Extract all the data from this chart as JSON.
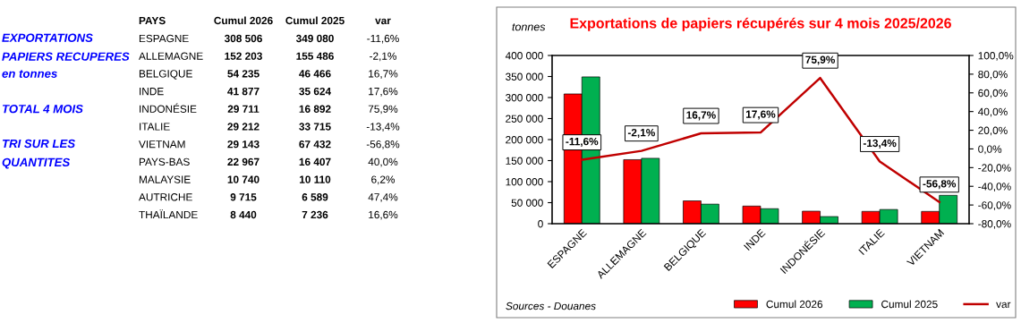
{
  "chart_data": [
    {
      "type": "other",
      "ylabel": "PAYS",
      "annotations": [
        "EXPORTATIONS\nPAPIERS RECUPERES",
        "en tonnes",
        "TOTAL 4 MOIS",
        "TRI SUR LES\nQUANTITES"
      ],
      "categories": [
        "ESPAGNE",
        "ALLEMAGNE",
        "BELGIQUE",
        "INDE",
        "INDONÉSIE",
        "ITALIE",
        "VIETNAM",
        "PAYS-BAS",
        "MALAYSIE",
        "AUTRICHE",
        "THAÏLANDE"
      ],
      "series": [
        {
          "name": "Cumul 2026",
          "color": "#000000",
          "values": [
            308506,
            152203,
            54235,
            41877,
            29711,
            29212,
            29143,
            22967,
            10740,
            9715,
            8440
          ],
          "value_labels": [
            "308 506",
            "152 203",
            "54 235",
            "41 877",
            "29 711",
            "29 212",
            "29 143",
            "22 967",
            "10 740",
            "9 715",
            "8 440"
          ]
        },
        {
          "name": "Cumul 2025",
          "color": "#000000",
          "values": [
            349080,
            155486,
            46466,
            35624,
            16892,
            33715,
            67432,
            16407,
            10110,
            6589,
            7236
          ],
          "value_labels": [
            "349 080",
            "155 486",
            "46 466",
            "35 624",
            "16 892",
            "33 715",
            "67 432",
            "16 407",
            "10 110",
            "6 589",
            "7 236"
          ]
        },
        {
          "name": "var",
          "color": "#000000",
          "values": [
            -11.6,
            -2.1,
            16.7,
            17.6,
            75.9,
            -13.4,
            -56.8,
            40.0,
            6.2,
            47.4,
            16.6
          ],
          "value_labels": [
            "-11,6%",
            "-2,1%",
            "16,7%",
            "17,6%",
            "75,9%",
            "-13,4%",
            "-56,8%",
            "40,0%",
            "6,2%",
            "47,4%",
            "16,6%"
          ]
        }
      ]
    },
    {
      "type": "bar",
      "title": "Exportations de papiers récupérés sur 4 mois 2025/2026",
      "ylabel": "tonnes",
      "annotations": [
        "Sources - Douanes"
      ],
      "categories": [
        "ESPAGNE",
        "ALLEMAGNE",
        "BELGIQUE",
        "INDE",
        "INDONÉSIE",
        "ITALIE",
        "VIETNAM"
      ],
      "series": [
        {
          "name": "Cumul 2026",
          "color": "#ff0000",
          "values": [
            308506,
            152203,
            54235,
            41877,
            29711,
            29212,
            29143
          ]
        },
        {
          "name": "Cumul 2025",
          "color": "#00b050",
          "values": [
            349080,
            155486,
            46466,
            35624,
            16892,
            33715,
            67432
          ]
        },
        {
          "name": "var",
          "type": "line",
          "axis": "y2",
          "color": "#c00000",
          "values": [
            -11.6,
            -2.1,
            16.7,
            17.6,
            75.9,
            -13.4,
            -56.8
          ],
          "value_labels": [
            "-11,6%",
            "-2,1%",
            "16,7%",
            "17,6%",
            "75,9%",
            "-13,4%",
            "-56,8%"
          ]
        }
      ],
      "ylim": [
        0,
        400000
      ],
      "yticks": [
        {
          "value": 0,
          "label": "0"
        },
        {
          "value": 50000,
          "label": "50 000"
        },
        {
          "value": 100000,
          "label": "100 000"
        },
        {
          "value": 150000,
          "label": "150 000"
        },
        {
          "value": 200000,
          "label": "200 000"
        },
        {
          "value": 250000,
          "label": "250 000"
        },
        {
          "value": 300000,
          "label": "300 000"
        },
        {
          "value": 350000,
          "label": "350 000"
        },
        {
          "value": 400000,
          "label": "400 000"
        }
      ],
      "y2lim": [
        -80,
        100
      ],
      "y2ticks": [
        {
          "value": -80,
          "label": "-80,0%"
        },
        {
          "value": -60,
          "label": "-60,0%"
        },
        {
          "value": -40,
          "label": "-40,0%"
        },
        {
          "value": -20,
          "label": "-20,0%"
        },
        {
          "value": 0,
          "label": "0,0%"
        },
        {
          "value": 20,
          "label": "20,0%"
        },
        {
          "value": 40,
          "label": "40,0%"
        },
        {
          "value": 60,
          "label": "60,0%"
        },
        {
          "value": 80,
          "label": "80,0%"
        },
        {
          "value": 100,
          "label": "100,0%"
        }
      ],
      "legend": "bottom",
      "grid": false,
      "marker": "none"
    }
  ]
}
